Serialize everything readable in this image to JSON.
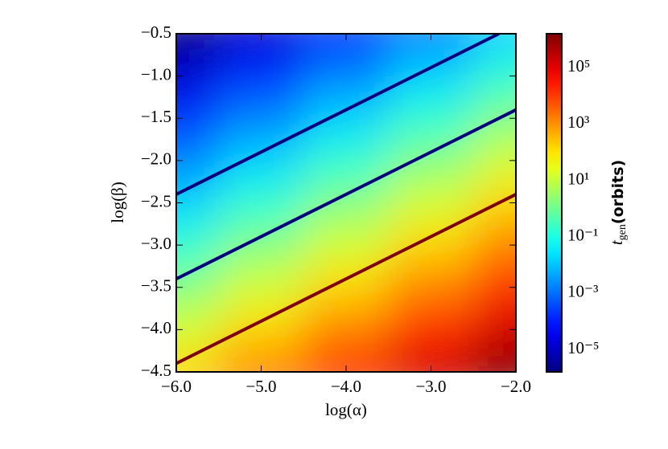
{
  "chart_data": {
    "type": "heatmap",
    "x_label": "log(α)",
    "y_label": "log(β)",
    "colorbar_label": {
      "symbol": "t",
      "subscript": "gen",
      "unit": "(orbits)"
    },
    "colormap": "jet",
    "color_scale": "log",
    "xlim": [
      -6,
      -2
    ],
    "ylim": [
      -4.5,
      -0.5
    ],
    "xticks": [
      {
        "value": -6,
        "label": "−6.0"
      },
      {
        "value": -5,
        "label": "−5.0"
      },
      {
        "value": -4,
        "label": "−4.0"
      },
      {
        "value": -3,
        "label": "−3.0"
      },
      {
        "value": -2,
        "label": "−2.0"
      }
    ],
    "yticks": [
      {
        "value": -4.5,
        "label": "−4.5"
      },
      {
        "value": -4,
        "label": "−4.0"
      },
      {
        "value": -3.5,
        "label": "−3.5"
      },
      {
        "value": -3,
        "label": "−3.0"
      },
      {
        "value": -2.5,
        "label": "−2.5"
      },
      {
        "value": -2,
        "label": "−2.0"
      },
      {
        "value": -1.5,
        "label": "−1.5"
      },
      {
        "value": -1,
        "label": "−1.0"
      },
      {
        "value": -0.5,
        "label": "−0.5"
      }
    ],
    "clim": [
      1.6e-06,
      1600000.0
    ],
    "cticks": [
      {
        "value": 1e-05,
        "label": "10⁻⁵"
      },
      {
        "value": 0.001,
        "label": "10⁻³"
      },
      {
        "value": 0.1,
        "label": "10⁻¹"
      },
      {
        "value": 10,
        "label": "10¹"
      },
      {
        "value": 1000,
        "label": "10³"
      },
      {
        "value": 100000,
        "label": "10⁵"
      }
    ],
    "grid_x": [
      -6,
      -5,
      -4,
      -3,
      -2
    ],
    "grid_y": [
      -0.5,
      -1,
      -1.5,
      -2,
      -2.5,
      -3,
      -3.5,
      -4,
      -4.5
    ],
    "z": [
      [
        1.6e-06,
        1.6e-05,
        0.00016,
        0.0016,
        0.016
      ],
      [
        1.6e-05,
        0.00016,
        0.0016,
        0.016,
        0.16
      ],
      [
        0.00016,
        0.0016,
        0.016,
        0.16,
        1.6
      ],
      [
        0.0016,
        0.016,
        0.16,
        1.6,
        16
      ],
      [
        0.016,
        0.16,
        1.6,
        16,
        160
      ],
      [
        0.16,
        1.6,
        16,
        160,
        1600
      ],
      [
        1.6,
        16,
        160,
        1600,
        16000
      ],
      [
        16,
        160,
        1600,
        16000,
        160000
      ],
      [
        160,
        1600,
        16000,
        160000,
        1600000
      ]
    ],
    "series": [
      {
        "color": "#00007f",
        "x": [
          -6,
          -2.2
        ],
        "values": [
          -2.4,
          -0.5
        ]
      },
      {
        "color": "#00007f",
        "x": [
          -6,
          -2
        ],
        "values": [
          -3.4,
          -1.4
        ]
      },
      {
        "color": "#7f0000",
        "x": [
          -6,
          -2
        ],
        "values": [
          -4.4,
          -2.4
        ]
      }
    ]
  }
}
